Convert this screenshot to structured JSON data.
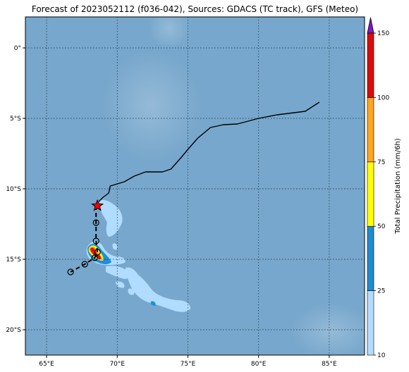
{
  "title": "Forecast of 2023052112 (f036-042), Sources: GDACS (TC track), GFS (Meteo)",
  "map": {
    "ocean_color": "#77a7cc",
    "coastline_color": "#000000",
    "lon_ticks": [
      {
        "lon": 65,
        "label": "65°E"
      },
      {
        "lon": 70,
        "label": "70°E"
      },
      {
        "lon": 75,
        "label": "75°E"
      },
      {
        "lon": 80,
        "label": "80°E"
      },
      {
        "lon": 85,
        "label": "85°E"
      }
    ],
    "lat_ticks": [
      {
        "lat": 0,
        "label": "0°"
      },
      {
        "lat": -5,
        "label": "5°S"
      },
      {
        "lat": -10,
        "label": "10°S"
      },
      {
        "lat": -15,
        "label": "15°S"
      },
      {
        "lat": -20,
        "label": "20°S"
      }
    ],
    "extent": {
      "lon_min": 63.5,
      "lon_max": 87.5,
      "lat_min": -21.8,
      "lat_max": 2.2
    },
    "coastline": [
      [
        84.3,
        -3.85
      ],
      [
        83.3,
        -4.5
      ],
      [
        81.3,
        -4.75
      ],
      [
        80.0,
        -5.0
      ],
      [
        78.5,
        -5.4
      ],
      [
        77.5,
        -5.45
      ],
      [
        76.6,
        -5.65
      ],
      [
        75.7,
        -6.4
      ],
      [
        75.0,
        -7.2
      ],
      [
        74.5,
        -7.8
      ],
      [
        73.8,
        -8.6
      ],
      [
        73.2,
        -8.8
      ],
      [
        72.0,
        -8.8
      ],
      [
        71.2,
        -9.1
      ],
      [
        70.5,
        -9.5
      ],
      [
        69.5,
        -9.8
      ],
      [
        69.4,
        -10.3
      ],
      [
        69.0,
        -10.6
      ],
      [
        68.7,
        -10.9
      ]
    ],
    "track": {
      "color": "#000000",
      "points": [
        [
          68.5,
          -11.2
        ],
        [
          68.5,
          -12.4
        ],
        [
          68.5,
          -13.7
        ],
        [
          68.6,
          -14.5
        ],
        [
          68.4,
          -14.9
        ],
        [
          67.7,
          -15.35
        ],
        [
          66.7,
          -15.9
        ]
      ],
      "current_position": {
        "lon": 68.6,
        "lat": -11.2,
        "marker": "star",
        "color": "#ff0000"
      },
      "forecast_marker": "circle"
    },
    "precip_colors": [
      "#b0dcff",
      "#1e8fdc",
      "#ffff00",
      "#ffa500",
      "#e01010",
      "#8010c0"
    ]
  },
  "colorbar": {
    "label": "Total Precipitation (mm/6h)",
    "levels": [
      10,
      25,
      50,
      75,
      100,
      150
    ],
    "tick_labels": [
      "10",
      "25",
      "50",
      "75",
      "100",
      "150"
    ],
    "colors": [
      "#b4dcff",
      "#1e8cd2",
      "#ffff00",
      "#ffa51e",
      "#dc0a0a"
    ],
    "extend_color": "#7a1cc8"
  }
}
